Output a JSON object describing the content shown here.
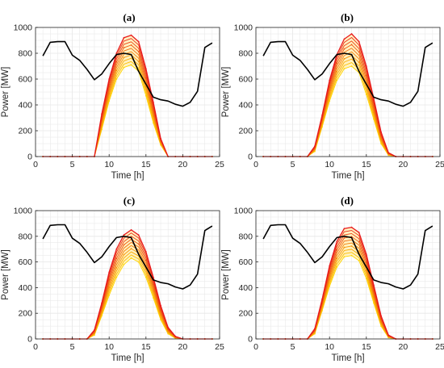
{
  "colors": {
    "demand": "#000000",
    "gen_low": "#ffd400",
    "gen_high": "#e8191b",
    "grid": "#e6e6e6",
    "axis": "#262626",
    "band": "#fff2c2"
  },
  "chart_data": [
    {
      "type": "line",
      "panel": "(a)",
      "xlabel": "Time [h]",
      "ylabel": "Power [MW]",
      "xlim": [
        0,
        25
      ],
      "ylim": [
        0,
        1000
      ],
      "xticks": [
        0,
        5,
        10,
        15,
        20,
        25
      ],
      "yticks": [
        0,
        200,
        400,
        600,
        800,
        1000
      ],
      "grid": true,
      "demand": {
        "x": [
          1,
          2,
          3,
          4,
          5,
          6,
          7,
          8,
          9,
          10,
          11,
          12,
          13,
          14,
          15,
          16,
          17,
          18,
          19,
          20,
          21,
          22,
          23,
          24
        ],
        "y": [
          780,
          885,
          890,
          890,
          785,
          745,
          675,
          595,
          640,
          720,
          790,
          800,
          790,
          660,
          560,
          460,
          440,
          430,
          405,
          390,
          420,
          505,
          845,
          880
        ]
      },
      "generation": {
        "x": [
          1,
          2,
          3,
          4,
          5,
          6,
          7,
          8,
          9,
          10,
          11,
          12,
          13,
          14,
          15,
          16,
          17,
          18,
          19,
          20,
          21,
          22,
          23,
          24
        ],
        "hours": [
          8,
          9,
          10,
          11,
          12,
          13,
          14,
          15,
          16,
          17,
          18
        ],
        "min_profile": [
          0,
          210,
          430,
          600,
          690,
          710,
          660,
          470,
          260,
          90,
          0
        ],
        "max_profile": [
          0,
          330,
          600,
          800,
          920,
          940,
          890,
          680,
          420,
          140,
          0
        ],
        "n_curves": 10
      }
    },
    {
      "type": "line",
      "panel": "(b)",
      "xlabel": "Time [h]",
      "ylabel": "Power [MW]",
      "xlim": [
        0,
        25
      ],
      "ylim": [
        0,
        1000
      ],
      "xticks": [
        0,
        5,
        10,
        15,
        20,
        25
      ],
      "yticks": [
        0,
        200,
        400,
        600,
        800,
        1000
      ],
      "grid": true,
      "demand": {
        "x": [
          1,
          2,
          3,
          4,
          5,
          6,
          7,
          8,
          9,
          10,
          11,
          12,
          13,
          14,
          15,
          16,
          17,
          18,
          19,
          20,
          21,
          22,
          23,
          24
        ],
        "y": [
          780,
          885,
          890,
          890,
          785,
          745,
          675,
          595,
          640,
          720,
          790,
          800,
          790,
          660,
          560,
          460,
          440,
          430,
          405,
          390,
          420,
          505,
          845,
          880
        ]
      },
      "generation": {
        "hours": [
          7,
          8,
          9,
          10,
          11,
          12,
          13,
          14,
          15,
          16,
          17,
          18,
          19
        ],
        "min_profile": [
          0,
          40,
          230,
          430,
          590,
          680,
          700,
          650,
          480,
          290,
          100,
          10,
          0
        ],
        "max_profile": [
          0,
          80,
          320,
          590,
          790,
          910,
          950,
          890,
          700,
          450,
          190,
          30,
          0
        ],
        "n_curves": 10
      }
    },
    {
      "type": "line",
      "panel": "(c)",
      "xlabel": "Time [h]",
      "ylabel": "Power [MW]",
      "xlim": [
        0,
        25
      ],
      "ylim": [
        0,
        1000
      ],
      "xticks": [
        0,
        5,
        10,
        15,
        20,
        25
      ],
      "yticks": [
        0,
        200,
        400,
        600,
        800,
        1000
      ],
      "grid": true,
      "demand": {
        "x": [
          1,
          2,
          3,
          4,
          5,
          6,
          7,
          8,
          9,
          10,
          11,
          12,
          13,
          14,
          15,
          16,
          17,
          18,
          19,
          20,
          21,
          22,
          23,
          24
        ],
        "y": [
          780,
          885,
          890,
          890,
          785,
          745,
          675,
          595,
          640,
          720,
          790,
          800,
          790,
          660,
          560,
          460,
          440,
          430,
          405,
          390,
          420,
          505,
          845,
          880
        ]
      },
      "generation": {
        "hours": [
          7,
          8,
          9,
          10,
          11,
          12,
          13,
          14,
          15,
          16,
          17,
          18,
          19,
          20
        ],
        "min_profile": [
          0,
          30,
          180,
          340,
          480,
          580,
          630,
          600,
          480,
          320,
          150,
          40,
          5,
          0
        ],
        "max_profile": [
          0,
          70,
          280,
          520,
          700,
          810,
          850,
          810,
          680,
          480,
          260,
          90,
          20,
          0
        ],
        "n_curves": 10
      }
    },
    {
      "type": "line",
      "panel": "(d)",
      "xlabel": "Time [h]",
      "ylabel": "Power [MW]",
      "xlim": [
        0,
        25
      ],
      "ylim": [
        0,
        1000
      ],
      "xticks": [
        0,
        5,
        10,
        15,
        20,
        25
      ],
      "yticks": [
        0,
        200,
        400,
        600,
        800,
        1000
      ],
      "grid": true,
      "demand": {
        "x": [
          1,
          2,
          3,
          4,
          5,
          6,
          7,
          8,
          9,
          10,
          11,
          12,
          13,
          14,
          15,
          16,
          17,
          18,
          19,
          20,
          21,
          22,
          23,
          24
        ],
        "y": [
          780,
          885,
          890,
          890,
          785,
          745,
          675,
          595,
          640,
          720,
          790,
          800,
          790,
          660,
          560,
          460,
          440,
          430,
          405,
          390,
          420,
          505,
          845,
          880
        ]
      },
      "generation": {
        "hours": [
          7,
          8,
          9,
          10,
          11,
          12,
          13,
          14,
          15,
          16,
          17,
          18,
          19
        ],
        "min_profile": [
          0,
          40,
          220,
          410,
          560,
          640,
          650,
          610,
          470,
          280,
          100,
          10,
          0
        ],
        "max_profile": [
          0,
          80,
          310,
          570,
          760,
          860,
          870,
          830,
          660,
          420,
          180,
          30,
          0
        ],
        "n_curves": 10
      }
    }
  ]
}
